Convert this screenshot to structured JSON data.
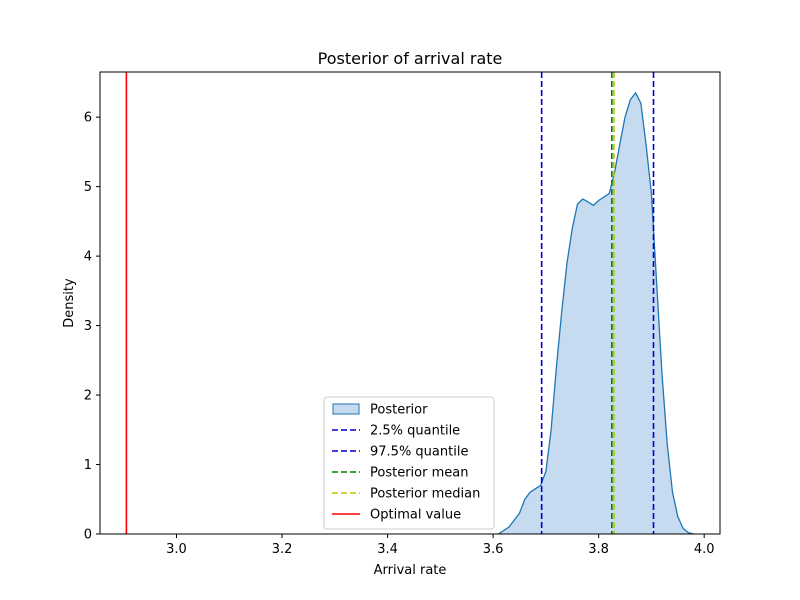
{
  "chart_data": {
    "type": "area",
    "title": "Posterior of arrival rate",
    "xlabel": "Arrival rate",
    "ylabel": "Density",
    "xlim": [
      2.855,
      4.03
    ],
    "ylim": [
      0,
      6.65
    ],
    "x_ticks": [
      3.0,
      3.2,
      3.4,
      3.6,
      3.8,
      4.0
    ],
    "x_tick_labels": [
      "3.0",
      "3.2",
      "3.4",
      "3.6",
      "3.8",
      "4.0"
    ],
    "y_ticks": [
      0,
      1,
      2,
      3,
      4,
      5,
      6
    ],
    "y_tick_labels": [
      "0",
      "1",
      "2",
      "3",
      "4",
      "5",
      "6"
    ],
    "grid": false,
    "legend_position": "lower-center",
    "series": [
      {
        "name": "Posterior",
        "kind": "density",
        "color": "#1f77b4",
        "fill": "#c6dbef",
        "x": [
          3.61,
          3.63,
          3.65,
          3.66,
          3.67,
          3.68,
          3.69,
          3.7,
          3.71,
          3.72,
          3.73,
          3.74,
          3.75,
          3.76,
          3.77,
          3.78,
          3.79,
          3.8,
          3.81,
          3.82,
          3.83,
          3.84,
          3.85,
          3.86,
          3.87,
          3.88,
          3.89,
          3.9,
          3.91,
          3.92,
          3.93,
          3.94,
          3.95,
          3.96,
          3.97,
          3.98
        ],
        "y": [
          0.0,
          0.1,
          0.3,
          0.5,
          0.6,
          0.65,
          0.7,
          0.9,
          1.5,
          2.4,
          3.2,
          3.9,
          4.4,
          4.75,
          4.82,
          4.78,
          4.73,
          4.8,
          4.85,
          4.9,
          5.2,
          5.6,
          6.0,
          6.25,
          6.35,
          6.2,
          5.6,
          4.9,
          3.6,
          2.3,
          1.3,
          0.6,
          0.25,
          0.08,
          0.02,
          0.0
        ]
      }
    ],
    "vlines": [
      {
        "name": "2.5% quantile",
        "x": 3.692,
        "color": "#0000cc",
        "style": "dashed"
      },
      {
        "name": "97.5% quantile",
        "x": 3.904,
        "color": "#0000cc",
        "style": "dashed"
      },
      {
        "name": "Posterior mean",
        "x": 3.825,
        "color": "#008000",
        "style": "dashed"
      },
      {
        "name": "Posterior median",
        "x": 3.829,
        "color": "#bfbf00",
        "style": "dashed"
      },
      {
        "name": "Optimal value",
        "x": 2.905,
        "color": "#ff0000",
        "style": "solid"
      }
    ]
  }
}
